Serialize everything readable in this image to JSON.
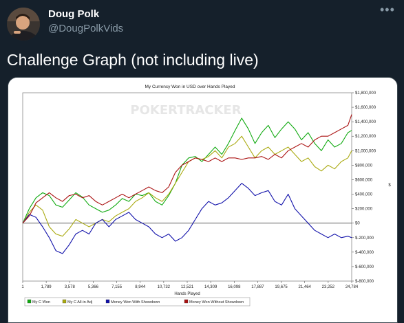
{
  "tweet": {
    "author_name": "Doug Polk",
    "author_handle": "@DougPolkVids",
    "more_glyph": "•••",
    "text": "Challenge Graph (not including live)"
  },
  "chart_data": {
    "type": "line",
    "title": "My Currency Won in USD over Hands Played",
    "watermark": "POKERTRACKER",
    "xlabel": "Hands Played",
    "ylabel": "$",
    "xlim": [
      1,
      24784
    ],
    "ylim": [
      -800000,
      1800000
    ],
    "x_ticks": [
      "1",
      "1,789",
      "3,578",
      "5,366",
      "7,155",
      "8,944",
      "10,732",
      "12,521",
      "14,309",
      "16,098",
      "17,887",
      "19,675",
      "21,464",
      "23,252",
      "24,784"
    ],
    "y_ticks": [
      "$1,800,000",
      "$1,600,000",
      "$1,400,000",
      "$1,200,000",
      "$1,000,000",
      "$800,000",
      "$600,000",
      "$400,000",
      "$200,000",
      "$0",
      "$-200,000",
      "$-400,000",
      "$-600,000",
      "$-800,000"
    ],
    "legend_position": "bottom-left",
    "series": [
      {
        "name": "My C Won",
        "color": "#11aa11",
        "x": [
          1,
          500,
          1000,
          1500,
          2000,
          2500,
          3000,
          3500,
          4000,
          4500,
          5000,
          5500,
          6000,
          6500,
          7000,
          7500,
          8000,
          8500,
          9000,
          9500,
          10000,
          10500,
          11000,
          11500,
          12000,
          12500,
          13000,
          13500,
          14000,
          14500,
          15000,
          15500,
          16000,
          16500,
          17000,
          17500,
          18000,
          18500,
          19000,
          19500,
          20000,
          20500,
          21000,
          21500,
          22000,
          22500,
          23000,
          23500,
          24000,
          24500,
          24784
        ],
        "values": [
          0,
          200000,
          350000,
          420000,
          380000,
          250000,
          220000,
          320000,
          420000,
          360000,
          250000,
          200000,
          150000,
          180000,
          250000,
          340000,
          300000,
          400000,
          380000,
          420000,
          300000,
          250000,
          380000,
          550000,
          800000,
          900000,
          920000,
          850000,
          950000,
          1050000,
          950000,
          1100000,
          1280000,
          1450000,
          1300000,
          1100000,
          1250000,
          1350000,
          1180000,
          1300000,
          1400000,
          1300000,
          1150000,
          1250000,
          1100000,
          1000000,
          1150000,
          1050000,
          1100000,
          1250000,
          1280000
        ]
      },
      {
        "name": "My C All-in Adj",
        "color": "#aaaa11",
        "x": [
          1,
          500,
          1000,
          1500,
          2000,
          2500,
          3000,
          3500,
          4000,
          4500,
          5000,
          5500,
          6000,
          6500,
          7000,
          7500,
          8000,
          8500,
          9000,
          9500,
          10000,
          10500,
          11000,
          11500,
          12000,
          12500,
          13000,
          13500,
          14000,
          14500,
          15000,
          15500,
          16000,
          16500,
          17000,
          17500,
          18000,
          18500,
          19000,
          19500,
          20000,
          20500,
          21000,
          21500,
          22000,
          22500,
          23000,
          23500,
          24000,
          24500,
          24784
        ],
        "values": [
          0,
          150000,
          250000,
          180000,
          -50000,
          -150000,
          -180000,
          -80000,
          50000,
          0,
          -50000,
          0,
          50000,
          20000,
          100000,
          150000,
          200000,
          300000,
          350000,
          420000,
          350000,
          300000,
          400000,
          550000,
          700000,
          850000,
          900000,
          880000,
          920000,
          1000000,
          900000,
          1050000,
          1100000,
          1200000,
          1050000,
          900000,
          1000000,
          1050000,
          950000,
          1000000,
          1050000,
          950000,
          850000,
          900000,
          780000,
          720000,
          800000,
          750000,
          850000,
          900000,
          1000000
        ]
      },
      {
        "name": "Money Won With Showdown",
        "color": "#1111aa",
        "x": [
          1,
          500,
          1000,
          1500,
          2000,
          2500,
          3000,
          3500,
          4000,
          4500,
          5000,
          5500,
          6000,
          6500,
          7000,
          7500,
          8000,
          8500,
          9000,
          9500,
          10000,
          10500,
          11000,
          11500,
          12000,
          12500,
          13000,
          13500,
          14000,
          14500,
          15000,
          15500,
          16000,
          16500,
          17000,
          17500,
          18000,
          18500,
          19000,
          19500,
          20000,
          20500,
          21000,
          21500,
          22000,
          22500,
          23000,
          23500,
          24000,
          24500,
          24784
        ],
        "values": [
          0,
          120000,
          80000,
          -50000,
          -200000,
          -380000,
          -420000,
          -300000,
          -150000,
          -100000,
          -150000,
          0,
          50000,
          -50000,
          50000,
          100000,
          150000,
          50000,
          0,
          -50000,
          -150000,
          -200000,
          -150000,
          -250000,
          -200000,
          -100000,
          50000,
          200000,
          300000,
          250000,
          280000,
          350000,
          450000,
          550000,
          480000,
          380000,
          420000,
          450000,
          300000,
          250000,
          400000,
          200000,
          100000,
          0,
          -100000,
          -150000,
          -200000,
          -150000,
          -200000,
          -180000,
          -200000
        ]
      },
      {
        "name": "Money Won Without Showdown",
        "color": "#aa1111",
        "x": [
          1,
          500,
          1000,
          1500,
          2000,
          2500,
          3000,
          3500,
          4000,
          4500,
          5000,
          5500,
          6000,
          6500,
          7000,
          7500,
          8000,
          8500,
          9000,
          9500,
          10000,
          10500,
          11000,
          11500,
          12000,
          12500,
          13000,
          13500,
          14000,
          14500,
          15000,
          15500,
          16000,
          16500,
          17000,
          17500,
          18000,
          18500,
          19000,
          19500,
          20000,
          20500,
          21000,
          21500,
          22000,
          22500,
          23000,
          23500,
          24000,
          24500,
          24784
        ],
        "values": [
          0,
          100000,
          280000,
          350000,
          420000,
          350000,
          300000,
          380000,
          400000,
          350000,
          380000,
          300000,
          250000,
          300000,
          350000,
          400000,
          350000,
          400000,
          450000,
          500000,
          450000,
          420000,
          500000,
          700000,
          800000,
          850000,
          900000,
          880000,
          850000,
          900000,
          850000,
          900000,
          900000,
          880000,
          900000,
          900000,
          920000,
          880000,
          950000,
          900000,
          1000000,
          1050000,
          1100000,
          1050000,
          1150000,
          1200000,
          1200000,
          1250000,
          1300000,
          1350000,
          1500000
        ]
      }
    ]
  }
}
